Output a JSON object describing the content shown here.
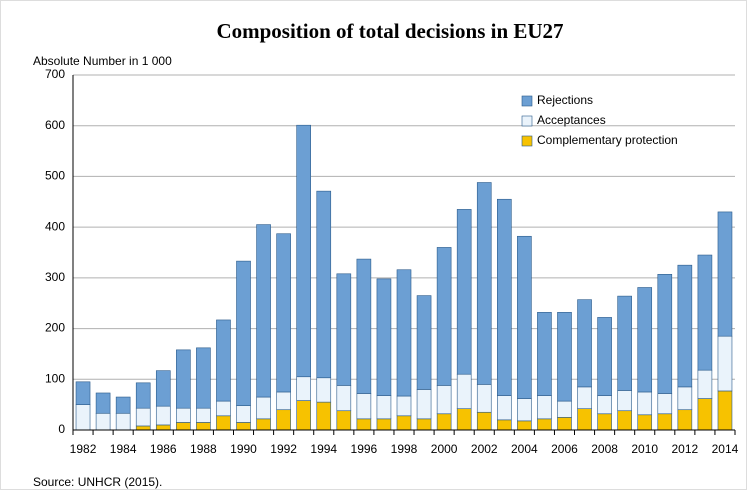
{
  "chart_data": {
    "type": "stacked_bar",
    "title": "Composition of total decisions in EU27",
    "y_label": "Absolute Number in 1 000",
    "source": "Source: UNHCR (2015).",
    "categories": [
      "1982",
      null,
      "1984",
      null,
      "1986",
      null,
      "1988",
      null,
      "1990",
      null,
      "1992",
      null,
      "1994",
      null,
      "1996",
      null,
      "1998",
      null,
      "2000",
      null,
      "2002",
      null,
      "2004",
      null,
      "2006",
      null,
      "2008",
      null,
      "2010",
      null,
      "2012",
      null,
      "2014"
    ],
    "series": [
      {
        "name": "Rejections",
        "color": "#6c9fd3",
        "values": [
          45,
          40,
          32,
          50,
          70,
          115,
          119,
          160,
          285,
          340,
          312,
          496,
          368,
          220,
          265,
          230,
          249,
          185,
          272,
          325,
          398,
          387,
          320,
          164,
          175,
          172,
          154,
          186,
          206,
          235,
          240,
          227,
          245
        ]
      },
      {
        "name": "Acceptances",
        "color": "#eaf3fb",
        "values": [
          50,
          33,
          33,
          35,
          37,
          28,
          28,
          29,
          33,
          43,
          35,
          47,
          48,
          50,
          50,
          46,
          39,
          58,
          56,
          68,
          55,
          48,
          44,
          46,
          32,
          43,
          36,
          40,
          45,
          40,
          45,
          56,
          108
        ]
      },
      {
        "name": "Complementary protection",
        "color": "#f7c200",
        "values": [
          0,
          0,
          0,
          8,
          10,
          15,
          15,
          28,
          15,
          22,
          40,
          58,
          55,
          38,
          22,
          22,
          28,
          22,
          32,
          42,
          35,
          20,
          18,
          22,
          25,
          42,
          32,
          38,
          30,
          32,
          40,
          62,
          77
        ]
      }
    ],
    "ylim": [
      0,
      700
    ],
    "yticks": [
      0,
      100,
      200,
      300,
      400,
      500,
      600,
      700
    ],
    "grid": true
  }
}
